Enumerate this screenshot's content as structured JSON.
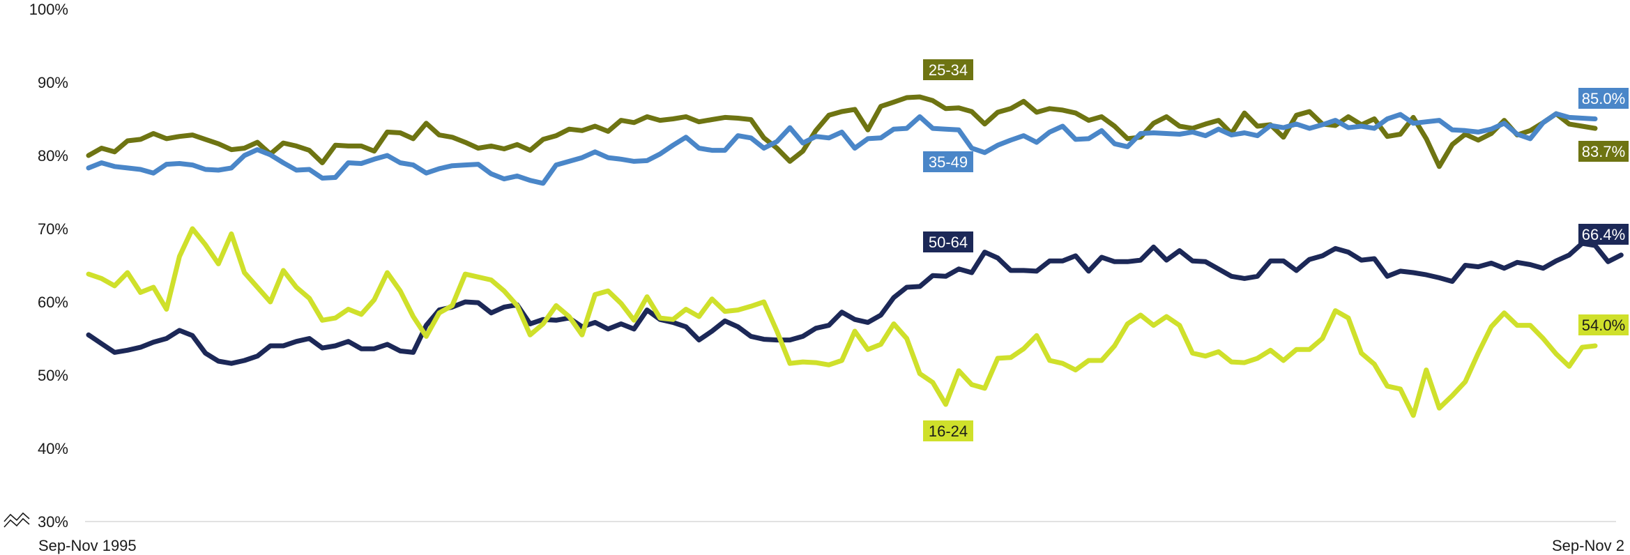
{
  "chart_data": {
    "type": "line",
    "title": "",
    "xlabel": "",
    "ylabel": "",
    "ylim": [
      30,
      100
    ],
    "y_ticks": [
      "100%",
      "90%",
      "80%",
      "70%",
      "60%",
      "50%",
      "40%",
      "30%"
    ],
    "y_tick_values": [
      100,
      90,
      80,
      70,
      60,
      50,
      40,
      30
    ],
    "x_tick_labels": [
      "Sep-Nov 1995",
      "Sep-Nov 2"
    ],
    "axis_break": true,
    "grid": false,
    "legend": "none",
    "series": [
      {
        "name": "25-34",
        "color": "#6e7412",
        "label_bg": "#6e7412",
        "label_fg": "#ffffff",
        "values": [
          80.0,
          81.0,
          80.5,
          82.0,
          82.2,
          83.0,
          82.3,
          82.6,
          82.8,
          82.2,
          81.6,
          80.8,
          81.0,
          81.8,
          80.2,
          81.7,
          81.3,
          80.7,
          79.0,
          81.4,
          81.3,
          81.3,
          80.6,
          83.2,
          83.1,
          82.3,
          84.4,
          82.8,
          82.5,
          81.8,
          81.0,
          81.3,
          80.9,
          81.5,
          80.7,
          82.2,
          82.7,
          83.6,
          83.4,
          84.0,
          83.3,
          84.8,
          84.5,
          85.3,
          84.8,
          85.0,
          85.3,
          84.6,
          84.9,
          85.2,
          85.1,
          84.9,
          82.4,
          81.0,
          79.2,
          80.6,
          83.4,
          85.5,
          86.0,
          86.3,
          83.5,
          86.7,
          87.3,
          87.9,
          88.0,
          87.5,
          86.4,
          86.5,
          86.0,
          84.3,
          85.9,
          86.4,
          87.4,
          85.9,
          86.4,
          86.2,
          85.8,
          84.8,
          85.3,
          84.0,
          82.3,
          82.5,
          84.4,
          85.3,
          84.0,
          83.7,
          84.3,
          84.8,
          83.0,
          85.8,
          84.0,
          84.2,
          82.5,
          85.5,
          86.0,
          84.3,
          84.1,
          85.3,
          84.2,
          85.0,
          82.6,
          82.9,
          85.2,
          82.3,
          78.5,
          81.5,
          82.9,
          82.1,
          83.0,
          84.8,
          82.8,
          83.4,
          84.5,
          85.7,
          84.3,
          84.0,
          83.7
        ]
      },
      {
        "name": "35-49",
        "color": "#4a86c8",
        "label_bg": "#4a86c8",
        "label_fg": "#ffffff",
        "values": [
          78.3,
          79.0,
          78.5,
          78.3,
          78.1,
          77.6,
          78.8,
          78.9,
          78.7,
          78.1,
          78.0,
          78.3,
          80.0,
          80.8,
          80.1,
          79.0,
          78.0,
          78.1,
          76.9,
          77.0,
          79.0,
          78.9,
          79.5,
          80.0,
          79.0,
          78.7,
          77.6,
          78.2,
          78.6,
          78.7,
          78.8,
          77.5,
          76.8,
          77.2,
          76.6,
          76.2,
          78.7,
          79.2,
          79.7,
          80.5,
          79.7,
          79.5,
          79.2,
          79.3,
          80.2,
          81.4,
          82.5,
          81.0,
          80.7,
          80.7,
          82.7,
          82.4,
          81.0,
          81.9,
          83.8,
          81.7,
          82.6,
          82.4,
          83.2,
          81.0,
          82.3,
          82.4,
          83.6,
          83.7,
          85.3,
          83.7,
          83.6,
          83.5,
          81.0,
          80.4,
          81.4,
          82.1,
          82.7,
          81.8,
          83.2,
          84.0,
          82.2,
          82.3,
          83.4,
          81.6,
          81.2,
          83.0,
          83.1,
          83.0,
          82.9,
          83.2,
          82.7,
          83.6,
          82.8,
          83.1,
          82.7,
          84.1,
          83.8,
          84.3,
          83.7,
          84.2,
          84.8,
          83.8,
          84.0,
          83.7,
          85.0,
          85.6,
          84.4,
          84.6,
          84.8,
          83.5,
          83.4,
          83.2,
          83.6,
          84.4,
          82.9,
          82.3,
          84.5,
          85.7,
          85.2,
          85.1,
          85.0
        ]
      },
      {
        "name": "50-64",
        "color": "#1c2857",
        "label_bg": "#1c2857",
        "label_fg": "#ffffff",
        "values": [
          55.5,
          54.3,
          53.1,
          53.4,
          53.8,
          54.5,
          55.0,
          56.1,
          55.4,
          53.0,
          51.9,
          51.6,
          52.0,
          52.6,
          54.0,
          54.0,
          54.6,
          55.0,
          53.7,
          54.0,
          54.6,
          53.6,
          53.6,
          54.2,
          53.3,
          53.1,
          56.8,
          58.9,
          59.3,
          60.0,
          59.9,
          58.5,
          59.3,
          59.6,
          57.0,
          57.6,
          57.5,
          57.8,
          56.6,
          57.2,
          56.3,
          57.0,
          56.3,
          58.9,
          57.6,
          57.2,
          56.6,
          54.8,
          56.0,
          57.4,
          56.6,
          55.3,
          54.9,
          54.8,
          54.8,
          55.3,
          56.4,
          56.8,
          58.6,
          57.6,
          57.2,
          58.2,
          60.6,
          62.0,
          62.1,
          63.6,
          63.5,
          64.5,
          64.0,
          66.8,
          66.0,
          64.3,
          64.3,
          64.2,
          65.6,
          65.6,
          66.3,
          64.2,
          66.1,
          65.5,
          65.5,
          65.7,
          67.5,
          65.7,
          67.0,
          65.6,
          65.5,
          64.5,
          63.5,
          63.2,
          63.5,
          65.6,
          65.6,
          64.3,
          65.8,
          66.3,
          67.3,
          66.8,
          65.7,
          65.9,
          63.5,
          64.2,
          64.0,
          63.7,
          63.3,
          62.8,
          65.0,
          64.8,
          65.3,
          64.6,
          65.4,
          65.1,
          64.6,
          65.6,
          66.4,
          68.0,
          67.7,
          65.5,
          66.4
        ]
      },
      {
        "name": "16-24",
        "color": "#cfe02b",
        "label_bg": "#cfe02b",
        "label_fg": "#1a1a1a",
        "values": [
          63.8,
          63.2,
          62.2,
          64.0,
          61.3,
          62.0,
          59.0,
          66.2,
          70.0,
          67.8,
          65.2,
          69.3,
          64.0,
          62.0,
          60.0,
          64.3,
          62.0,
          60.5,
          57.5,
          57.8,
          59.0,
          58.3,
          60.3,
          64.0,
          61.5,
          58.0,
          55.3,
          58.5,
          59.5,
          63.8,
          63.4,
          63.0,
          61.5,
          59.5,
          55.5,
          57.0,
          59.5,
          58.0,
          55.5,
          61.0,
          61.5,
          59.8,
          57.5,
          60.7,
          57.8,
          57.6,
          59.0,
          58.0,
          60.4,
          58.7,
          58.9,
          59.4,
          60.0,
          56.0,
          51.6,
          51.8,
          51.7,
          51.4,
          52.0,
          56.0,
          53.5,
          54.2,
          57.0,
          55.0,
          50.2,
          49.0,
          46.0,
          50.6,
          48.7,
          48.2,
          52.3,
          52.4,
          53.6,
          55.4,
          52.0,
          51.6,
          50.7,
          52.0,
          52.0,
          54.0,
          57.0,
          58.2,
          56.8,
          58.0,
          56.8,
          53.0,
          52.6,
          53.2,
          51.8,
          51.7,
          52.3,
          53.4,
          52.0,
          53.5,
          53.5,
          55.0,
          58.8,
          57.8,
          53.0,
          51.5,
          48.5,
          48.1,
          44.5,
          50.7,
          45.5,
          47.2,
          49.1,
          53.0,
          56.6,
          58.5,
          56.8,
          56.8,
          55.0,
          52.9,
          51.2,
          53.8,
          54.0
        ]
      }
    ],
    "inline_labels": [
      {
        "series": "25-34",
        "text": "25-34"
      },
      {
        "series": "35-49",
        "text": "35-49"
      },
      {
        "series": "50-64",
        "text": "50-64"
      },
      {
        "series": "16-24",
        "text": "16-24"
      }
    ],
    "end_labels": [
      {
        "series": "35-49",
        "text": "85.0%"
      },
      {
        "series": "25-34",
        "text": "83.7%"
      },
      {
        "series": "50-64",
        "text": "66.4%"
      },
      {
        "series": "16-24",
        "text": "54.0%"
      }
    ]
  }
}
